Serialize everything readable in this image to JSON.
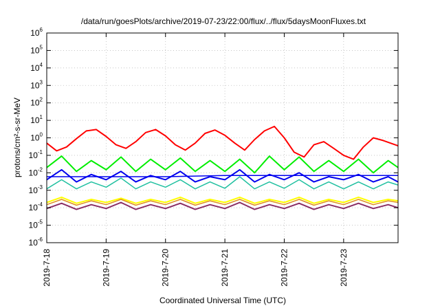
{
  "chart_data": {
    "type": "line",
    "title": "/data/run/goesPlots/archive/2019-07-23/22:00/flux/../flux/5daysMoonFluxes.txt",
    "xlabel": "Coordinated Universal Time (UTC)",
    "ylabel": "protons/cm²-s-sr-MeV",
    "x_scale": "time",
    "y_scale": "log",
    "xlim": [
      "2019-07-18T00:00",
      "2019-07-23T22:00"
    ],
    "ylim": [
      1e-06,
      1000000.0
    ],
    "x_ticks": [
      "2019-7-18",
      "2019-7-19",
      "2019-7-20",
      "2019-7-21",
      "2019-7-22",
      "2019-7-23"
    ],
    "y_ticks": [
      {
        "base": "10",
        "exp": "-6"
      },
      {
        "base": "10",
        "exp": "-5"
      },
      {
        "base": "10",
        "exp": "-4"
      },
      {
        "base": "10",
        "exp": "-3"
      },
      {
        "base": "10",
        "exp": "-2"
      },
      {
        "base": "10",
        "exp": "-1"
      },
      {
        "base": "10",
        "exp": "0"
      },
      {
        "base": "10",
        "exp": "1"
      },
      {
        "base": "10",
        "exp": "2"
      },
      {
        "base": "10",
        "exp": "3"
      },
      {
        "base": "10",
        "exp": "4"
      },
      {
        "base": "10",
        "exp": "5"
      },
      {
        "base": "10",
        "exp": "6"
      }
    ],
    "grid": true,
    "legend": "none",
    "series": [
      {
        "color": "#ff0000",
        "x": [
          "2019-07-18T00:00",
          "2019-07-18T04:00",
          "2019-07-18T08:00",
          "2019-07-18T12:00",
          "2019-07-18T16:00",
          "2019-07-18T20:00",
          "2019-07-19T00:00",
          "2019-07-19T04:00",
          "2019-07-19T08:00",
          "2019-07-19T12:00",
          "2019-07-19T16:00",
          "2019-07-19T20:00",
          "2019-07-20T00:00",
          "2019-07-20T04:00",
          "2019-07-20T08:00",
          "2019-07-20T12:00",
          "2019-07-20T16:00",
          "2019-07-20T20:00",
          "2019-07-21T00:00",
          "2019-07-21T04:00",
          "2019-07-21T08:00",
          "2019-07-21T12:00",
          "2019-07-21T16:00",
          "2019-07-21T20:00",
          "2019-07-22T00:00",
          "2019-07-22T04:00",
          "2019-07-22T08:00",
          "2019-07-22T12:00",
          "2019-07-22T16:00",
          "2019-07-22T20:00",
          "2019-07-23T00:00",
          "2019-07-23T04:00",
          "2019-07-23T08:00",
          "2019-07-23T12:00",
          "2019-07-23T16:00",
          "2019-07-23T22:00"
        ],
        "values": [
          0.5,
          0.18,
          0.3,
          0.9,
          2.5,
          3.0,
          1.2,
          0.4,
          0.25,
          0.6,
          2.0,
          3.0,
          1.3,
          0.4,
          0.2,
          0.5,
          1.8,
          2.8,
          1.4,
          0.5,
          0.2,
          0.8,
          2.5,
          4.5,
          1.0,
          0.15,
          0.08,
          0.4,
          0.6,
          0.25,
          0.1,
          0.06,
          0.3,
          1.0,
          0.7,
          0.35
        ]
      },
      {
        "color": "#00ee00",
        "x": [
          "2019-07-18T00:00",
          "2019-07-18T06:00",
          "2019-07-18T12:00",
          "2019-07-18T18:00",
          "2019-07-19T00:00",
          "2019-07-19T06:00",
          "2019-07-19T12:00",
          "2019-07-19T18:00",
          "2019-07-20T00:00",
          "2019-07-20T06:00",
          "2019-07-20T12:00",
          "2019-07-20T18:00",
          "2019-07-21T00:00",
          "2019-07-21T06:00",
          "2019-07-21T12:00",
          "2019-07-21T18:00",
          "2019-07-22T00:00",
          "2019-07-22T06:00",
          "2019-07-22T12:00",
          "2019-07-22T18:00",
          "2019-07-23T00:00",
          "2019-07-23T06:00",
          "2019-07-23T12:00",
          "2019-07-23T18:00",
          "2019-07-23T22:00"
        ],
        "values": [
          0.02,
          0.09,
          0.012,
          0.05,
          0.015,
          0.08,
          0.012,
          0.06,
          0.015,
          0.07,
          0.012,
          0.05,
          0.012,
          0.06,
          0.01,
          0.09,
          0.015,
          0.08,
          0.012,
          0.05,
          0.012,
          0.06,
          0.01,
          0.05,
          0.02
        ]
      },
      {
        "color": "#0000ee",
        "x": [
          "2019-07-18T00:00",
          "2019-07-18T06:00",
          "2019-07-18T12:00",
          "2019-07-18T18:00",
          "2019-07-19T00:00",
          "2019-07-19T06:00",
          "2019-07-19T12:00",
          "2019-07-19T18:00",
          "2019-07-20T00:00",
          "2019-07-20T06:00",
          "2019-07-20T12:00",
          "2019-07-20T18:00",
          "2019-07-21T00:00",
          "2019-07-21T06:00",
          "2019-07-21T12:00",
          "2019-07-21T18:00",
          "2019-07-22T00:00",
          "2019-07-22T06:00",
          "2019-07-22T12:00",
          "2019-07-22T18:00",
          "2019-07-23T00:00",
          "2019-07-23T06:00",
          "2019-07-23T12:00",
          "2019-07-23T18:00",
          "2019-07-23T22:00"
        ],
        "values": [
          0.004,
          0.015,
          0.003,
          0.008,
          0.004,
          0.012,
          0.003,
          0.007,
          0.004,
          0.012,
          0.003,
          0.006,
          0.004,
          0.015,
          0.003,
          0.008,
          0.004,
          0.01,
          0.003,
          0.006,
          0.004,
          0.008,
          0.003,
          0.006,
          0.003
        ]
      },
      {
        "color": "#0000ee",
        "x": [
          "2019-07-18T00:00",
          "2019-07-19T00:00",
          "2019-07-20T00:00",
          "2019-07-21T00:00",
          "2019-07-22T00:00",
          "2019-07-23T00:00",
          "2019-07-23T22:00"
        ],
        "values": [
          0.006,
          0.006,
          0.006,
          0.007,
          0.007,
          0.007,
          0.007
        ]
      },
      {
        "color": "#20c0a0",
        "x": [
          "2019-07-18T00:00",
          "2019-07-18T06:00",
          "2019-07-18T12:00",
          "2019-07-18T18:00",
          "2019-07-19T00:00",
          "2019-07-19T06:00",
          "2019-07-19T12:00",
          "2019-07-19T18:00",
          "2019-07-20T00:00",
          "2019-07-20T06:00",
          "2019-07-20T12:00",
          "2019-07-20T18:00",
          "2019-07-21T00:00",
          "2019-07-21T06:00",
          "2019-07-21T12:00",
          "2019-07-21T18:00",
          "2019-07-22T00:00",
          "2019-07-22T06:00",
          "2019-07-22T12:00",
          "2019-07-22T18:00",
          "2019-07-23T00:00",
          "2019-07-23T06:00",
          "2019-07-23T12:00",
          "2019-07-23T18:00",
          "2019-07-23T22:00"
        ],
        "values": [
          0.0012,
          0.004,
          0.0012,
          0.003,
          0.0015,
          0.005,
          0.0012,
          0.003,
          0.0015,
          0.004,
          0.0012,
          0.003,
          0.0013,
          0.006,
          0.0012,
          0.003,
          0.0013,
          0.004,
          0.0012,
          0.003,
          0.0012,
          0.003,
          0.0012,
          0.003,
          0.002
        ]
      },
      {
        "color": "#ffff00",
        "x": [
          "2019-07-18T00:00",
          "2019-07-18T06:00",
          "2019-07-18T12:00",
          "2019-07-18T18:00",
          "2019-07-19T00:00",
          "2019-07-19T06:00",
          "2019-07-19T12:00",
          "2019-07-19T18:00",
          "2019-07-20T00:00",
          "2019-07-20T06:00",
          "2019-07-20T12:00",
          "2019-07-20T18:00",
          "2019-07-21T00:00",
          "2019-07-21T06:00",
          "2019-07-21T12:00",
          "2019-07-21T18:00",
          "2019-07-22T00:00",
          "2019-07-22T06:00",
          "2019-07-22T12:00",
          "2019-07-22T18:00",
          "2019-07-23T00:00",
          "2019-07-23T06:00",
          "2019-07-23T12:00",
          "2019-07-23T18:00",
          "2019-07-23T22:00"
        ],
        "values": [
          0.0002,
          0.0004,
          0.00018,
          0.0003,
          0.0002,
          0.00035,
          0.00018,
          0.0003,
          0.0002,
          0.0004,
          0.00018,
          0.0003,
          0.0002,
          0.0004,
          0.00018,
          0.0003,
          0.0002,
          0.0004,
          0.00018,
          0.0003,
          0.0002,
          0.0004,
          0.0002,
          0.0003,
          0.00025
        ]
      },
      {
        "color": "#e09020",
        "x": [
          "2019-07-18T00:00",
          "2019-07-18T06:00",
          "2019-07-18T12:00",
          "2019-07-18T18:00",
          "2019-07-19T00:00",
          "2019-07-19T06:00",
          "2019-07-19T12:00",
          "2019-07-19T18:00",
          "2019-07-20T00:00",
          "2019-07-20T06:00",
          "2019-07-20T12:00",
          "2019-07-20T18:00",
          "2019-07-21T00:00",
          "2019-07-21T06:00",
          "2019-07-21T12:00",
          "2019-07-21T18:00",
          "2019-07-22T00:00",
          "2019-07-22T06:00",
          "2019-07-22T12:00",
          "2019-07-22T18:00",
          "2019-07-23T00:00",
          "2019-07-23T06:00",
          "2019-07-23T12:00",
          "2019-07-23T18:00",
          "2019-07-23T22:00"
        ],
        "values": [
          0.00015,
          0.0003,
          0.00014,
          0.00025,
          0.00015,
          0.0003,
          0.00014,
          0.00025,
          0.00015,
          0.0003,
          0.00014,
          0.00025,
          0.00015,
          0.0003,
          0.00014,
          0.00025,
          0.00015,
          0.0003,
          0.00014,
          0.00025,
          0.00015,
          0.0003,
          0.00015,
          0.00025,
          0.0002
        ]
      },
      {
        "color": "#8a2d64",
        "x": [
          "2019-07-18T00:00",
          "2019-07-18T06:00",
          "2019-07-18T12:00",
          "2019-07-18T18:00",
          "2019-07-19T00:00",
          "2019-07-19T06:00",
          "2019-07-19T12:00",
          "2019-07-19T18:00",
          "2019-07-20T00:00",
          "2019-07-20T06:00",
          "2019-07-20T12:00",
          "2019-07-20T18:00",
          "2019-07-21T00:00",
          "2019-07-21T06:00",
          "2019-07-21T12:00",
          "2019-07-21T18:00",
          "2019-07-22T00:00",
          "2019-07-22T06:00",
          "2019-07-22T12:00",
          "2019-07-22T18:00",
          "2019-07-23T00:00",
          "2019-07-23T06:00",
          "2019-07-23T12:00",
          "2019-07-23T18:00",
          "2019-07-23T22:00"
        ],
        "values": [
          9e-05,
          0.00018,
          8e-05,
          0.00015,
          9e-05,
          0.0002,
          8e-05,
          0.00015,
          9e-05,
          0.00018,
          8e-05,
          0.00015,
          9e-05,
          0.0002,
          8e-05,
          0.00015,
          9e-05,
          0.00018,
          8e-05,
          0.00015,
          9e-05,
          0.00018,
          9e-05,
          0.00015,
          0.0001
        ]
      }
    ]
  }
}
